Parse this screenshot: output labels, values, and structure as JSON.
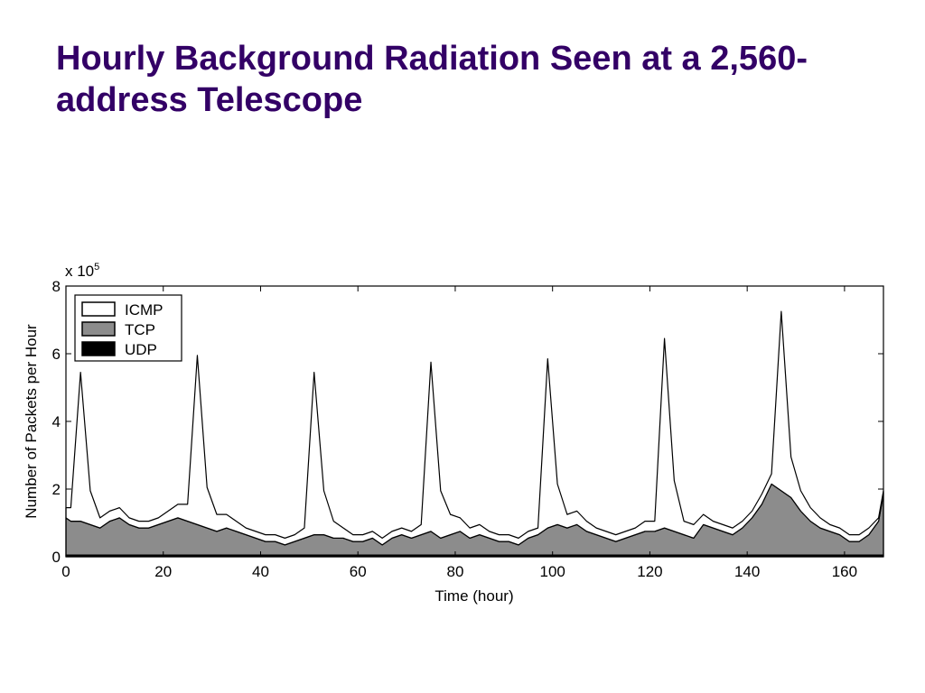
{
  "chart_data": {
    "type": "stacked_area",
    "title": "Hourly Background Radiation Seen at a 2,560-address Telescope",
    "x_label": "Time (hour)",
    "y_label": "Number of Packets per Hour",
    "y_multiplier": {
      "base": "x 10",
      "exponent": "5"
    },
    "xlim": [
      0,
      168
    ],
    "ylim": [
      0,
      8
    ],
    "xticks": [
      0,
      20,
      40,
      60,
      80,
      100,
      120,
      140,
      160
    ],
    "yticks": [
      0,
      2,
      4,
      6,
      8
    ],
    "legend": "top-left",
    "x": [
      0,
      1,
      3,
      5,
      7,
      9,
      11,
      13,
      15,
      17,
      19,
      21,
      23,
      25,
      27,
      29,
      31,
      33,
      35,
      37,
      39,
      41,
      43,
      45,
      47,
      49,
      51,
      53,
      55,
      57,
      59,
      61,
      63,
      65,
      67,
      69,
      71,
      73,
      75,
      77,
      79,
      81,
      83,
      85,
      87,
      89,
      91,
      93,
      95,
      97,
      99,
      101,
      103,
      105,
      107,
      109,
      111,
      113,
      115,
      117,
      119,
      121,
      123,
      125,
      127,
      129,
      131,
      133,
      135,
      137,
      139,
      141,
      143,
      145,
      147,
      149,
      151,
      153,
      155,
      157,
      159,
      161,
      163,
      165,
      167,
      168
    ],
    "series": [
      {
        "name": "ICMP",
        "color": "#ffffff",
        "values": [
          0.3,
          0.4,
          4.4,
          1.0,
          0.3,
          0.3,
          0.3,
          0.2,
          0.2,
          0.2,
          0.2,
          0.3,
          0.4,
          0.5,
          5.0,
          1.2,
          0.5,
          0.4,
          0.3,
          0.2,
          0.2,
          0.2,
          0.2,
          0.2,
          0.2,
          0.3,
          4.8,
          1.3,
          0.5,
          0.3,
          0.2,
          0.2,
          0.2,
          0.2,
          0.2,
          0.2,
          0.2,
          0.3,
          5.0,
          1.4,
          0.6,
          0.4,
          0.3,
          0.3,
          0.2,
          0.2,
          0.2,
          0.2,
          0.2,
          0.2,
          5.0,
          1.2,
          0.4,
          0.4,
          0.3,
          0.2,
          0.2,
          0.2,
          0.2,
          0.2,
          0.3,
          0.3,
          5.6,
          1.5,
          0.4,
          0.4,
          0.3,
          0.2,
          0.2,
          0.2,
          0.2,
          0.2,
          0.3,
          0.3,
          5.3,
          1.2,
          0.6,
          0.4,
          0.3,
          0.2,
          0.2,
          0.2,
          0.2,
          0.2,
          0.1,
          0.1
        ]
      },
      {
        "name": "TCP",
        "color": "#8c8c8c",
        "values": [
          1.1,
          1.0,
          1.0,
          0.9,
          0.8,
          1.0,
          1.1,
          0.9,
          0.8,
          0.8,
          0.9,
          1.0,
          1.1,
          1.0,
          0.9,
          0.8,
          0.7,
          0.8,
          0.7,
          0.6,
          0.5,
          0.4,
          0.4,
          0.3,
          0.4,
          0.5,
          0.6,
          0.6,
          0.5,
          0.5,
          0.4,
          0.4,
          0.5,
          0.3,
          0.5,
          0.6,
          0.5,
          0.6,
          0.7,
          0.5,
          0.6,
          0.7,
          0.5,
          0.6,
          0.5,
          0.4,
          0.4,
          0.3,
          0.5,
          0.6,
          0.8,
          0.9,
          0.8,
          0.9,
          0.7,
          0.6,
          0.5,
          0.4,
          0.5,
          0.6,
          0.7,
          0.7,
          0.8,
          0.7,
          0.6,
          0.5,
          0.9,
          0.8,
          0.7,
          0.6,
          0.8,
          1.1,
          1.5,
          2.1,
          1.9,
          1.7,
          1.3,
          1.0,
          0.8,
          0.7,
          0.6,
          0.4,
          0.4,
          0.6,
          1.0,
          1.8
        ]
      },
      {
        "name": "UDP",
        "color": "#000000",
        "values": [
          0.05,
          0.05,
          0.05,
          0.05,
          0.05,
          0.05,
          0.05,
          0.05,
          0.05,
          0.05,
          0.05,
          0.05,
          0.05,
          0.05,
          0.05,
          0.05,
          0.05,
          0.05,
          0.05,
          0.05,
          0.05,
          0.05,
          0.05,
          0.05,
          0.05,
          0.05,
          0.05,
          0.05,
          0.05,
          0.05,
          0.05,
          0.05,
          0.05,
          0.05,
          0.05,
          0.05,
          0.05,
          0.05,
          0.05,
          0.05,
          0.05,
          0.05,
          0.05,
          0.05,
          0.05,
          0.05,
          0.05,
          0.05,
          0.05,
          0.05,
          0.05,
          0.05,
          0.05,
          0.05,
          0.05,
          0.05,
          0.05,
          0.05,
          0.05,
          0.05,
          0.05,
          0.05,
          0.05,
          0.05,
          0.05,
          0.05,
          0.05,
          0.05,
          0.05,
          0.05,
          0.05,
          0.05,
          0.05,
          0.05,
          0.05,
          0.05,
          0.05,
          0.05,
          0.05,
          0.05,
          0.05,
          0.05,
          0.05,
          0.05,
          0.05,
          0.05
        ]
      }
    ]
  }
}
